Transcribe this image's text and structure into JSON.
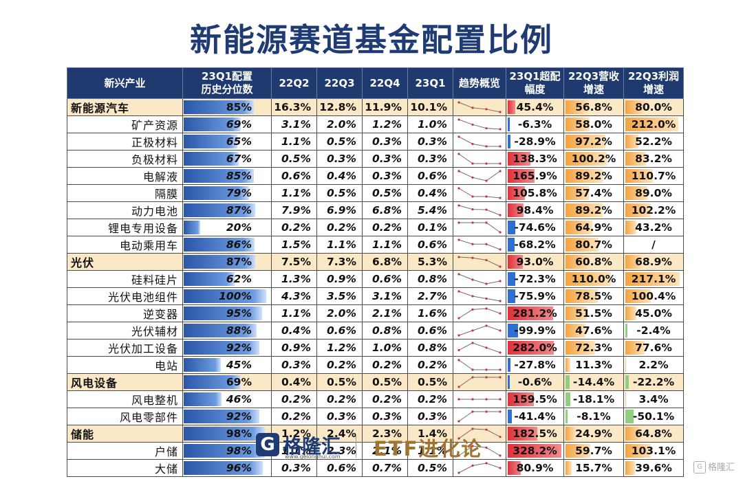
{
  "title": "新能源赛道基金配置比例",
  "headers": {
    "industry": "新兴产业",
    "pct": [
      "23Q1配置",
      "历史分位数"
    ],
    "q": [
      "22Q2",
      "22Q3",
      "22Q4",
      "23Q1"
    ],
    "trend": "趋势概览",
    "excess": [
      "23Q1超配",
      "幅度"
    ],
    "rev": [
      "22Q3营收",
      "增速"
    ],
    "profit": [
      "22Q3利润",
      "增速"
    ]
  },
  "rows": [
    {
      "name": "新能源汽车",
      "sector": true,
      "pct": "85%",
      "pv": 85,
      "q": [
        "16.3%",
        "12.8%",
        "11.9%",
        "10.1%"
      ],
      "qv": [
        16.3,
        12.8,
        11.9,
        10.1
      ],
      "ex": "45.4%",
      "exv": 45.4,
      "rev": "56.8%",
      "revv": 56.8,
      "pro": "80.0%",
      "prov": 80.0
    },
    {
      "name": "矿产资源",
      "sector": false,
      "pct": "69%",
      "pv": 69,
      "q": [
        "3.1%",
        "2.0%",
        "1.2%",
        "1.0%"
      ],
      "qv": [
        3.1,
        2.0,
        1.2,
        1.0
      ],
      "ex": "-6.3%",
      "exv": -6.3,
      "rev": "58.0%",
      "revv": 58.0,
      "pro": "212.0%",
      "prov": 212.0
    },
    {
      "name": "正极材料",
      "sector": false,
      "pct": "65%",
      "pv": 65,
      "q": [
        "1.1%",
        "0.5%",
        "0.3%",
        "0.3%"
      ],
      "qv": [
        1.1,
        0.5,
        0.3,
        0.3
      ],
      "ex": "-28.9%",
      "exv": -28.9,
      "rev": "97.2%",
      "revv": 97.2,
      "pro": "52.2%",
      "prov": 52.2
    },
    {
      "name": "负极材料",
      "sector": false,
      "pct": "67%",
      "pv": 67,
      "q": [
        "0.5%",
        "0.3%",
        "0.3%",
        "0.3%"
      ],
      "qv": [
        0.5,
        0.3,
        0.3,
        0.3
      ],
      "ex": "138.3%",
      "exv": 138.3,
      "rev": "100.2%",
      "revv": 100.2,
      "pro": "83.2%",
      "prov": 83.2
    },
    {
      "name": "电解液",
      "sector": false,
      "pct": "85%",
      "pv": 85,
      "q": [
        "0.6%",
        "0.4%",
        "0.3%",
        "0.6%"
      ],
      "qv": [
        0.6,
        0.4,
        0.3,
        0.6
      ],
      "ex": "165.9%",
      "exv": 165.9,
      "rev": "89.2%",
      "revv": 89.2,
      "pro": "110.7%",
      "prov": 110.7
    },
    {
      "name": "隔膜",
      "sector": false,
      "pct": "79%",
      "pv": 79,
      "q": [
        "1.1%",
        "0.5%",
        "0.5%",
        "0.4%"
      ],
      "qv": [
        1.1,
        0.5,
        0.5,
        0.4
      ],
      "ex": "105.8%",
      "exv": 105.8,
      "rev": "57.4%",
      "revv": 57.4,
      "pro": "89.0%",
      "prov": 89.0
    },
    {
      "name": "动力电池",
      "sector": false,
      "pct": "87%",
      "pv": 87,
      "q": [
        "7.9%",
        "6.9%",
        "6.8%",
        "5.4%"
      ],
      "qv": [
        7.9,
        6.9,
        6.8,
        5.4
      ],
      "ex": "98.4%",
      "exv": 98.4,
      "rev": "89.2%",
      "revv": 89.2,
      "pro": "102.2%",
      "prov": 102.2
    },
    {
      "name": "锂电专用设备",
      "sector": false,
      "pct": "20%",
      "pv": 20,
      "q": [
        "0.2%",
        "0.2%",
        "0.2%",
        "0.1%"
      ],
      "qv": [
        0.2,
        0.2,
        0.2,
        0.1
      ],
      "ex": "-74.6%",
      "exv": -74.6,
      "rev": "64.9%",
      "revv": 64.9,
      "pro": "43.2%",
      "prov": 43.2
    },
    {
      "name": "电动乘用车",
      "sector": false,
      "pct": "86%",
      "pv": 86,
      "q": [
        "1.5%",
        "1.1%",
        "1.1%",
        "0.6%"
      ],
      "qv": [
        1.5,
        1.1,
        1.1,
        0.6
      ],
      "ex": "-68.2%",
      "exv": -68.2,
      "rev": "80.7%",
      "revv": 80.7,
      "pro": "/",
      "prov": 0
    },
    {
      "name": "光伏",
      "sector": true,
      "pct": "87%",
      "pv": 87,
      "q": [
        "7.5%",
        "7.3%",
        "6.8%",
        "5.3%"
      ],
      "qv": [
        7.5,
        7.3,
        6.8,
        5.3
      ],
      "ex": "93.0%",
      "exv": 93.0,
      "rev": "60.8%",
      "revv": 60.8,
      "pro": "68.9%",
      "prov": 68.9
    },
    {
      "name": "硅料硅片",
      "sector": false,
      "pct": "62%",
      "pv": 62,
      "q": [
        "1.3%",
        "0.9%",
        "0.6%",
        "0.8%"
      ],
      "qv": [
        1.3,
        0.9,
        0.6,
        0.8
      ],
      "ex": "-72.3%",
      "exv": -72.3,
      "rev": "110.0%",
      "revv": 110.0,
      "pro": "217.1%",
      "prov": 217.1
    },
    {
      "name": "光伏电池组件",
      "sector": false,
      "pct": "100%",
      "pv": 100,
      "q": [
        "4.3%",
        "3.5%",
        "3.1%",
        "2.7%"
      ],
      "qv": [
        4.3,
        3.5,
        3.1,
        2.7
      ],
      "ex": "-75.9%",
      "exv": -75.9,
      "rev": "78.5%",
      "revv": 78.5,
      "pro": "100.4%",
      "prov": 100.4
    },
    {
      "name": "逆变器",
      "sector": false,
      "pct": "95%",
      "pv": 95,
      "q": [
        "1.1%",
        "2.0%",
        "2.1%",
        "1.6%"
      ],
      "qv": [
        1.1,
        2.0,
        2.1,
        1.6
      ],
      "ex": "281.2%",
      "exv": 281.2,
      "rev": "51.5%",
      "revv": 51.5,
      "pro": "45.0%",
      "prov": 45.0
    },
    {
      "name": "光伏辅材",
      "sector": false,
      "pct": "88%",
      "pv": 88,
      "q": [
        "0.4%",
        "0.6%",
        "0.8%",
        "0.6%"
      ],
      "qv": [
        0.4,
        0.6,
        0.8,
        0.6
      ],
      "ex": "-99.9%",
      "exv": -99.9,
      "rev": "47.6%",
      "revv": 47.6,
      "pro": "-2.4%",
      "prov": -2.4
    },
    {
      "name": "光伏加工设备",
      "sector": false,
      "pct": "92%",
      "pv": 92,
      "q": [
        "0.9%",
        "1.2%",
        "1.0%",
        "0.8%"
      ],
      "qv": [
        0.9,
        1.2,
        1.0,
        0.8
      ],
      "ex": "282.0%",
      "exv": 282.0,
      "rev": "72.3%",
      "revv": 72.3,
      "pro": "77.6%",
      "prov": 77.6
    },
    {
      "name": "电站",
      "sector": false,
      "pct": "45%",
      "pv": 45,
      "q": [
        "0.3%",
        "0.2%",
        "0.2%",
        "0.2%"
      ],
      "qv": [
        0.3,
        0.2,
        0.2,
        0.2
      ],
      "ex": "-27.8%",
      "exv": -27.8,
      "rev": "11.3%",
      "revv": 11.3,
      "pro": "2.2%",
      "prov": 2.2
    },
    {
      "name": "风电设备",
      "sector": true,
      "pct": "69%",
      "pv": 69,
      "q": [
        "0.4%",
        "0.5%",
        "0.5%",
        "0.5%"
      ],
      "qv": [
        0.4,
        0.5,
        0.5,
        0.5
      ],
      "ex": "-0.6%",
      "exv": -0.6,
      "rev": "-14.4%",
      "revv": -14.4,
      "pro": "-22.2%",
      "prov": -22.2
    },
    {
      "name": "风电整机",
      "sector": false,
      "pct": "46%",
      "pv": 46,
      "q": [
        "0.2%",
        "0.2%",
        "0.2%",
        "0.2%"
      ],
      "qv": [
        0.2,
        0.2,
        0.2,
        0.2
      ],
      "ex": "159.5%",
      "exv": 159.5,
      "rev": "-18.1%",
      "revv": -18.1,
      "pro": "3.4%",
      "prov": 3.4
    },
    {
      "name": "风电零部件",
      "sector": false,
      "pct": "92%",
      "pv": 92,
      "q": [
        "0.2%",
        "0.3%",
        "0.3%",
        "0.3%"
      ],
      "qv": [
        0.2,
        0.3,
        0.3,
        0.3
      ],
      "ex": "-41.4%",
      "exv": -41.4,
      "rev": "-8.1%",
      "revv": -8.1,
      "pro": "-50.1%",
      "prov": -50.1
    },
    {
      "name": "储能",
      "sector": true,
      "pct": "98%",
      "pv": 98,
      "q": [
        "1.2%",
        "2.4%",
        "2.3%",
        "1.4%"
      ],
      "qv": [
        1.2,
        2.4,
        2.3,
        1.4
      ],
      "ex": "182.5%",
      "exv": 182.5,
      "rev": "24.9%",
      "revv": 24.9,
      "pro": "64.8%",
      "prov": 64.8
    },
    {
      "name": "户储",
      "sector": false,
      "pct": "98%",
      "pv": 98,
      "q": [
        "1.1%",
        "2.3%",
        "2.1%",
        "1.1%"
      ],
      "qv": [
        1.1,
        2.3,
        2.1,
        1.1
      ],
      "ex": "328.2%",
      "exv": 328.2,
      "rev": "59.7%",
      "revv": 59.7,
      "pro": "103.1%",
      "prov": 103.1
    },
    {
      "name": "大储",
      "sector": false,
      "pct": "96%",
      "pv": 96,
      "q": [
        "0.3%",
        "0.6%",
        "0.7%",
        "0.5%"
      ],
      "qv": [
        0.3,
        0.6,
        0.7,
        0.5
      ],
      "ex": "80.9%",
      "exv": 80.9,
      "rev": "15.7%",
      "revv": 15.7,
      "pro": "39.6%",
      "prov": 39.6
    }
  ],
  "footer": {
    "logo_char": "G",
    "brand": "格隆汇",
    "url": "www.gelonghui.com",
    "slogan": "ETF进化论",
    "watermark": "格隆汇",
    "watermark_icon": "G"
  }
}
